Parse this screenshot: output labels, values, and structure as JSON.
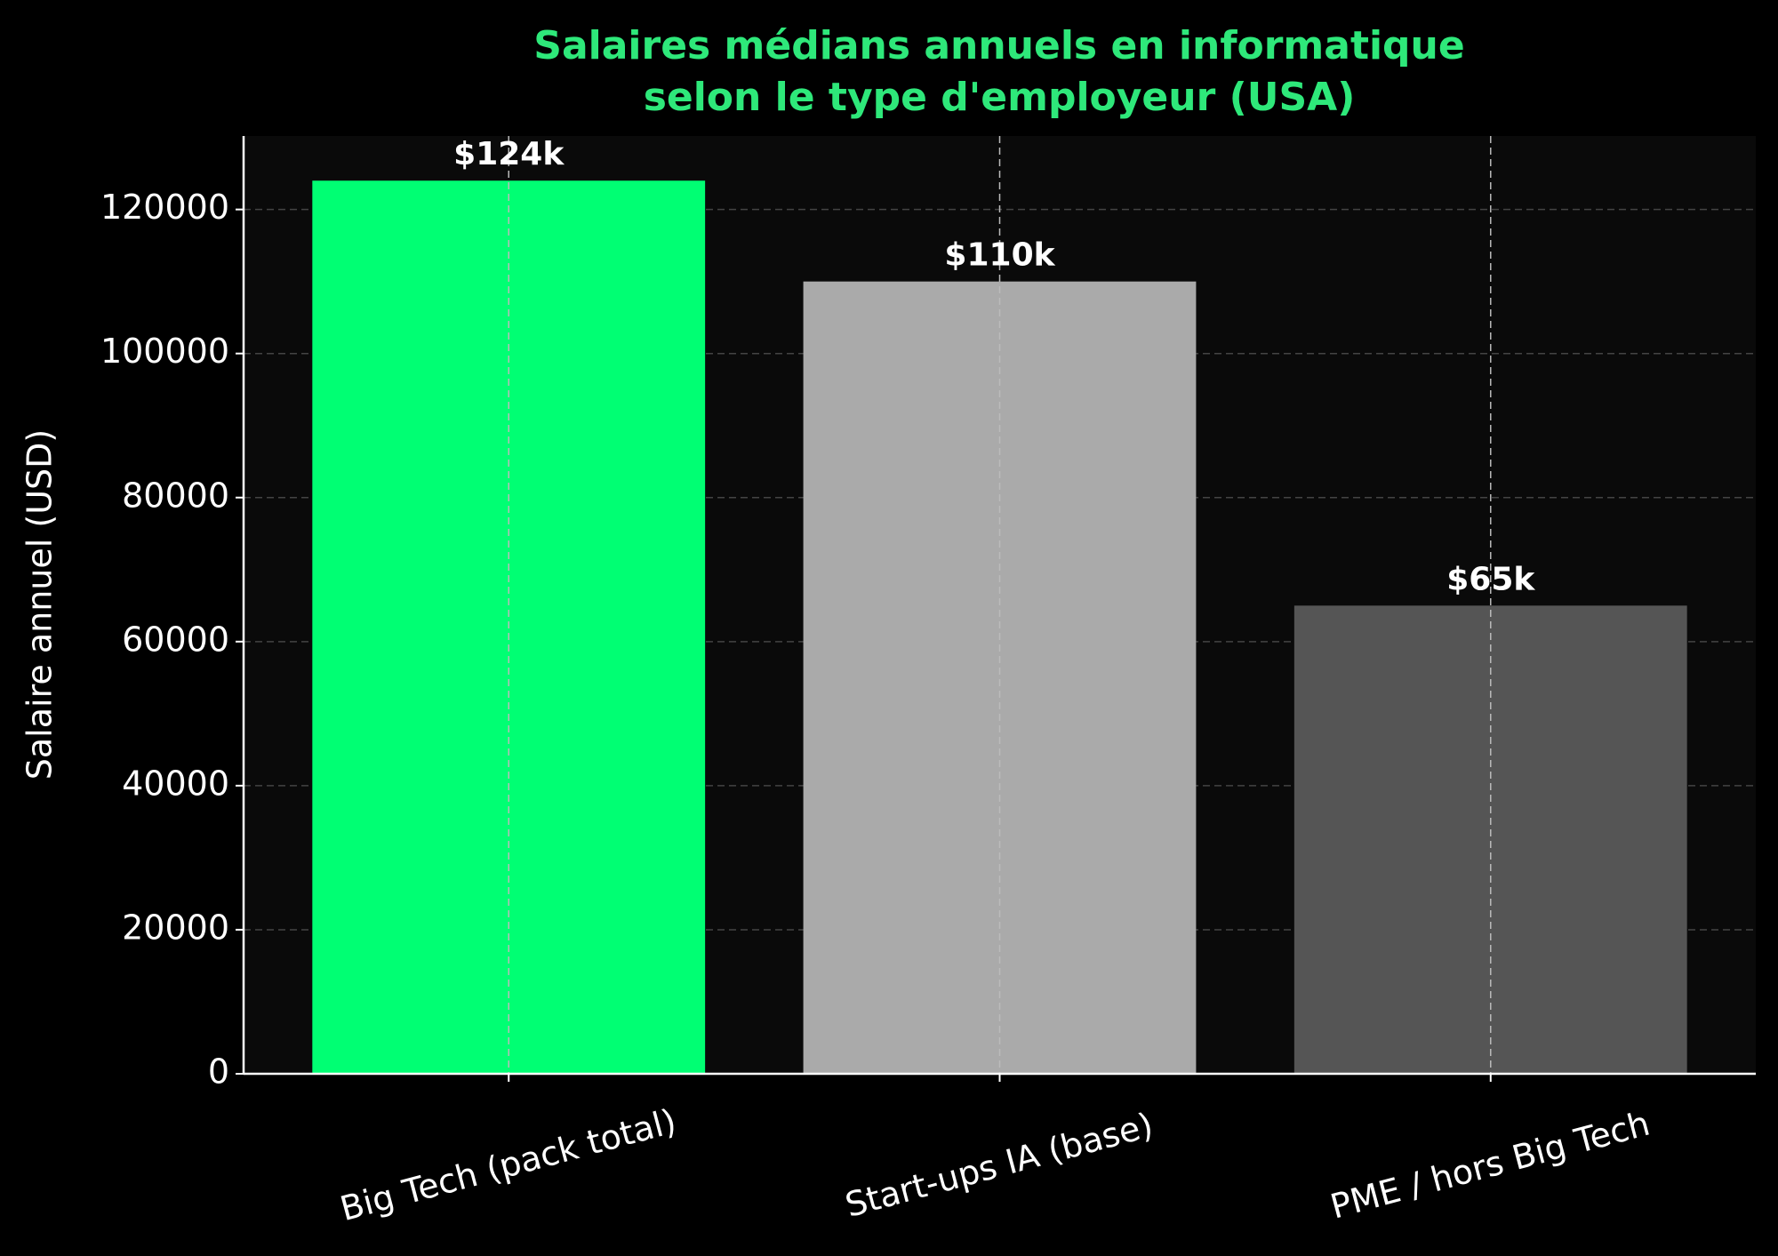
{
  "chart_data": {
    "type": "bar",
    "title": [
      "Salaires médians annuels en informatique",
      "selon le type d'employeur (USA)"
    ],
    "y_label": "Salaire annuel (USD)",
    "categories": [
      "Big Tech (pack total)",
      "Start-ups IA (base)",
      "PME / hors Big Tech"
    ],
    "values": [
      124000,
      110000,
      65000
    ],
    "value_labels": [
      "$124k",
      "$110k",
      "$65k"
    ],
    "colors": [
      "#00ff73",
      "#aaaaaa",
      "#555555"
    ],
    "ylim": [
      0,
      130200
    ],
    "yticks": [
      0,
      20000,
      40000,
      60000,
      80000,
      100000,
      120000
    ],
    "grid": true
  }
}
